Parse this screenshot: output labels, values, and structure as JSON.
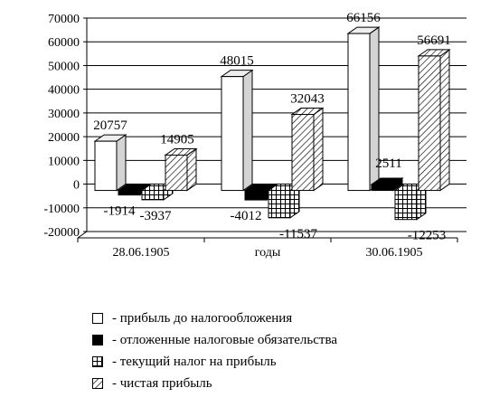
{
  "chart_data": {
    "type": "bar",
    "categories": [
      "28.06.1905",
      "годы",
      "30.06.1905"
    ],
    "ylim": [
      -20000,
      70000
    ],
    "yticks": [
      -20000,
      -10000,
      0,
      10000,
      20000,
      30000,
      40000,
      50000,
      60000,
      70000
    ],
    "grid": true,
    "legend_position": "bottom",
    "series": [
      {
        "name": "прибыль до налогообложения",
        "values": [
          20757,
          48015,
          66156
        ],
        "pattern": "white"
      },
      {
        "name": "отложенные налоговые обязательства",
        "values": [
          -1914,
          -4012,
          2511
        ],
        "pattern": "black"
      },
      {
        "name": "текущий налог на прибыль",
        "values": [
          -3937,
          -11537,
          -12253
        ],
        "pattern": "grid"
      },
      {
        "name": "чистая прибыль",
        "values": [
          14905,
          32043,
          56691
        ],
        "pattern": "hatch"
      }
    ]
  }
}
